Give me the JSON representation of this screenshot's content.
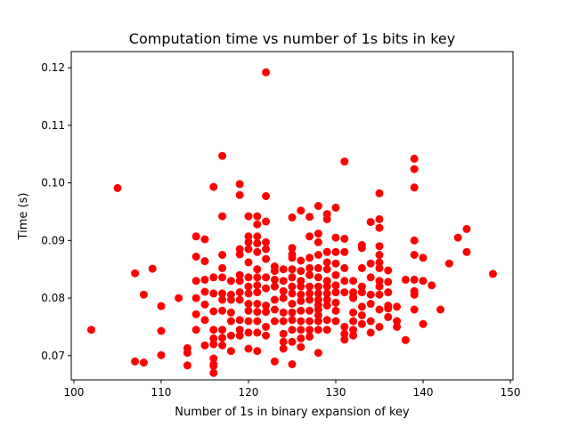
{
  "chart_data": {
    "type": "scatter",
    "title": "Computation time vs number of 1s bits in key",
    "xlabel": "Number of 1s in binary expansion of key",
    "ylabel": "Time (s)",
    "xlim": [
      99.7,
      150.3
    ],
    "ylim": [
      0.0658,
      0.1228
    ],
    "xticks": [
      100,
      110,
      120,
      130,
      140,
      150
    ],
    "yticks": [
      0.07,
      0.08,
      0.09,
      0.1,
      0.11,
      0.12
    ],
    "xtick_labels": [
      "100",
      "110",
      "120",
      "130",
      "140",
      "150"
    ],
    "ytick_labels": [
      "0.07",
      "0.08",
      "0.09",
      "0.10",
      "0.11",
      "0.12"
    ],
    "grid": false,
    "marker_color": "#ff0000",
    "series": [
      {
        "x": [
          102,
          105,
          107,
          107,
          108,
          108,
          109,
          110,
          110,
          110,
          112,
          113,
          113,
          113,
          114,
          114,
          114,
          114,
          114,
          114,
          115,
          115,
          115,
          115,
          115,
          115,
          115,
          116,
          116,
          116,
          116,
          116,
          116,
          116,
          116,
          116,
          116,
          116,
          117,
          117,
          117,
          117,
          117,
          117,
          117,
          117,
          117,
          117,
          117,
          118,
          118,
          118,
          118,
          118,
          118,
          118,
          119,
          119,
          119,
          119,
          119,
          119,
          119,
          119,
          119,
          119,
          119,
          120,
          120,
          120,
          120,
          120,
          120,
          120,
          120,
          120,
          120,
          120,
          120,
          120,
          121,
          121,
          121,
          121,
          121,
          121,
          121,
          121,
          121,
          121,
          121,
          121,
          121,
          121,
          122,
          122,
          122,
          122,
          122,
          122,
          122,
          122,
          122,
          122,
          122,
          122,
          123,
          123,
          123,
          123,
          123,
          123,
          123,
          123,
          124,
          124,
          124,
          124,
          124,
          124,
          124,
          124,
          124,
          125,
          125,
          125,
          125,
          125,
          125,
          125,
          125,
          125,
          125,
          125,
          125,
          125,
          125,
          126,
          126,
          126,
          126,
          126,
          126,
          126,
          126,
          126,
          126,
          126,
          126,
          127,
          127,
          127,
          127,
          127,
          127,
          127,
          127,
          127,
          127,
          127,
          127,
          128,
          128,
          128,
          128,
          128,
          128,
          128,
          128,
          128,
          128,
          128,
          128,
          128,
          128,
          128,
          129,
          129,
          129,
          129,
          129,
          129,
          129,
          129,
          129,
          129,
          129,
          129,
          130,
          130,
          130,
          130,
          130,
          130,
          130,
          130,
          130,
          130,
          131,
          131,
          131,
          131,
          131,
          131,
          131,
          131,
          131,
          132,
          132,
          132,
          132,
          132,
          132,
          132,
          132,
          133,
          133,
          133,
          133,
          133,
          133,
          133,
          133,
          134,
          134,
          134,
          134,
          134,
          134,
          134,
          135,
          135,
          135,
          135,
          135,
          135,
          135,
          135,
          135,
          135,
          135,
          135,
          136,
          136,
          136,
          136,
          136,
          136,
          137,
          137,
          137,
          138,
          138,
          139,
          139,
          139,
          139,
          139,
          139,
          139,
          139,
          139,
          140,
          140,
          140,
          141,
          142,
          143,
          144,
          145,
          145,
          148
        ],
        "y": [
          0.0745,
          0.0991,
          0.069,
          0.0843,
          0.0688,
          0.0806,
          0.0851,
          0.0701,
          0.0743,
          0.0786,
          0.08,
          0.0683,
          0.0705,
          0.0713,
          0.0907,
          0.0872,
          0.083,
          0.08,
          0.0772,
          0.0745,
          0.0902,
          0.0864,
          0.0832,
          0.0811,
          0.0789,
          0.0762,
          0.0718,
          0.0993,
          0.0836,
          0.0808,
          0.0777,
          0.0745,
          0.073,
          0.072,
          0.0695,
          0.0685,
          0.0682,
          0.067,
          0.1047,
          0.0942,
          0.0875,
          0.0852,
          0.0836,
          0.0808,
          0.0797,
          0.0778,
          0.0745,
          0.0731,
          0.0718,
          0.083,
          0.0806,
          0.0797,
          0.0775,
          0.076,
          0.0735,
          0.0708,
          0.0998,
          0.0979,
          0.0885,
          0.0876,
          0.084,
          0.083,
          0.081,
          0.0797,
          0.0762,
          0.0745,
          0.0735,
          0.0942,
          0.0907,
          0.0897,
          0.0885,
          0.0862,
          0.0836,
          0.082,
          0.0808,
          0.079,
          0.0778,
          0.076,
          0.074,
          0.0712,
          0.0942,
          0.0928,
          0.0907,
          0.0895,
          0.088,
          0.085,
          0.0836,
          0.0822,
          0.081,
          0.079,
          0.0776,
          0.076,
          0.074,
          0.0708,
          0.1192,
          0.0977,
          0.0933,
          0.0897,
          0.0885,
          0.0868,
          0.0836,
          0.0817,
          0.0787,
          0.0776,
          0.075,
          0.0735,
          0.0855,
          0.0847,
          0.0832,
          0.082,
          0.0797,
          0.078,
          0.076,
          0.069,
          0.085,
          0.083,
          0.0812,
          0.08,
          0.0775,
          0.076,
          0.0738,
          0.0724,
          0.0712,
          0.094,
          0.0887,
          0.0876,
          0.087,
          0.085,
          0.0836,
          0.082,
          0.0808,
          0.079,
          0.0775,
          0.0762,
          0.0745,
          0.0724,
          0.0685,
          0.0952,
          0.0865,
          0.0847,
          0.083,
          0.082,
          0.0806,
          0.0795,
          0.0778,
          0.076,
          0.0745,
          0.073,
          0.0715,
          0.0941,
          0.0907,
          0.087,
          0.0852,
          0.084,
          0.082,
          0.0808,
          0.0797,
          0.0778,
          0.076,
          0.0745,
          0.0733,
          0.096,
          0.0912,
          0.0897,
          0.0875,
          0.0852,
          0.0836,
          0.082,
          0.0808,
          0.0797,
          0.0788,
          0.078,
          0.077,
          0.076,
          0.0745,
          0.0705,
          0.0946,
          0.0937,
          0.088,
          0.0862,
          0.085,
          0.083,
          0.082,
          0.0808,
          0.0797,
          0.0787,
          0.0762,
          0.0745,
          0.0957,
          0.0905,
          0.088,
          0.086,
          0.084,
          0.0822,
          0.081,
          0.0792,
          0.0778,
          0.076,
          0.1037,
          0.0903,
          0.088,
          0.0852,
          0.083,
          0.081,
          0.075,
          0.0738,
          0.0728,
          0.083,
          0.08,
          0.0775,
          0.076,
          0.0745,
          0.0735,
          0.081,
          0.0802,
          0.0892,
          0.0887,
          0.0852,
          0.082,
          0.081,
          0.0785,
          0.077,
          0.0755,
          0.0932,
          0.086,
          0.0836,
          0.0806,
          0.079,
          0.076,
          0.074,
          0.0982,
          0.0937,
          0.0922,
          0.089,
          0.0875,
          0.0862,
          0.0852,
          0.083,
          0.082,
          0.0806,
          0.078,
          0.075,
          0.0848,
          0.0828,
          0.081,
          0.0787,
          0.0782,
          0.0767,
          0.0785,
          0.076,
          0.075,
          0.0832,
          0.0727,
          0.1042,
          0.1024,
          0.0992,
          0.09,
          0.0875,
          0.0832,
          0.0812,
          0.0806,
          0.078,
          0.087,
          0.083,
          0.0755,
          0.0822,
          0.078,
          0.086,
          0.0905,
          0.092,
          0.088,
          0.0842
        ]
      }
    ]
  }
}
